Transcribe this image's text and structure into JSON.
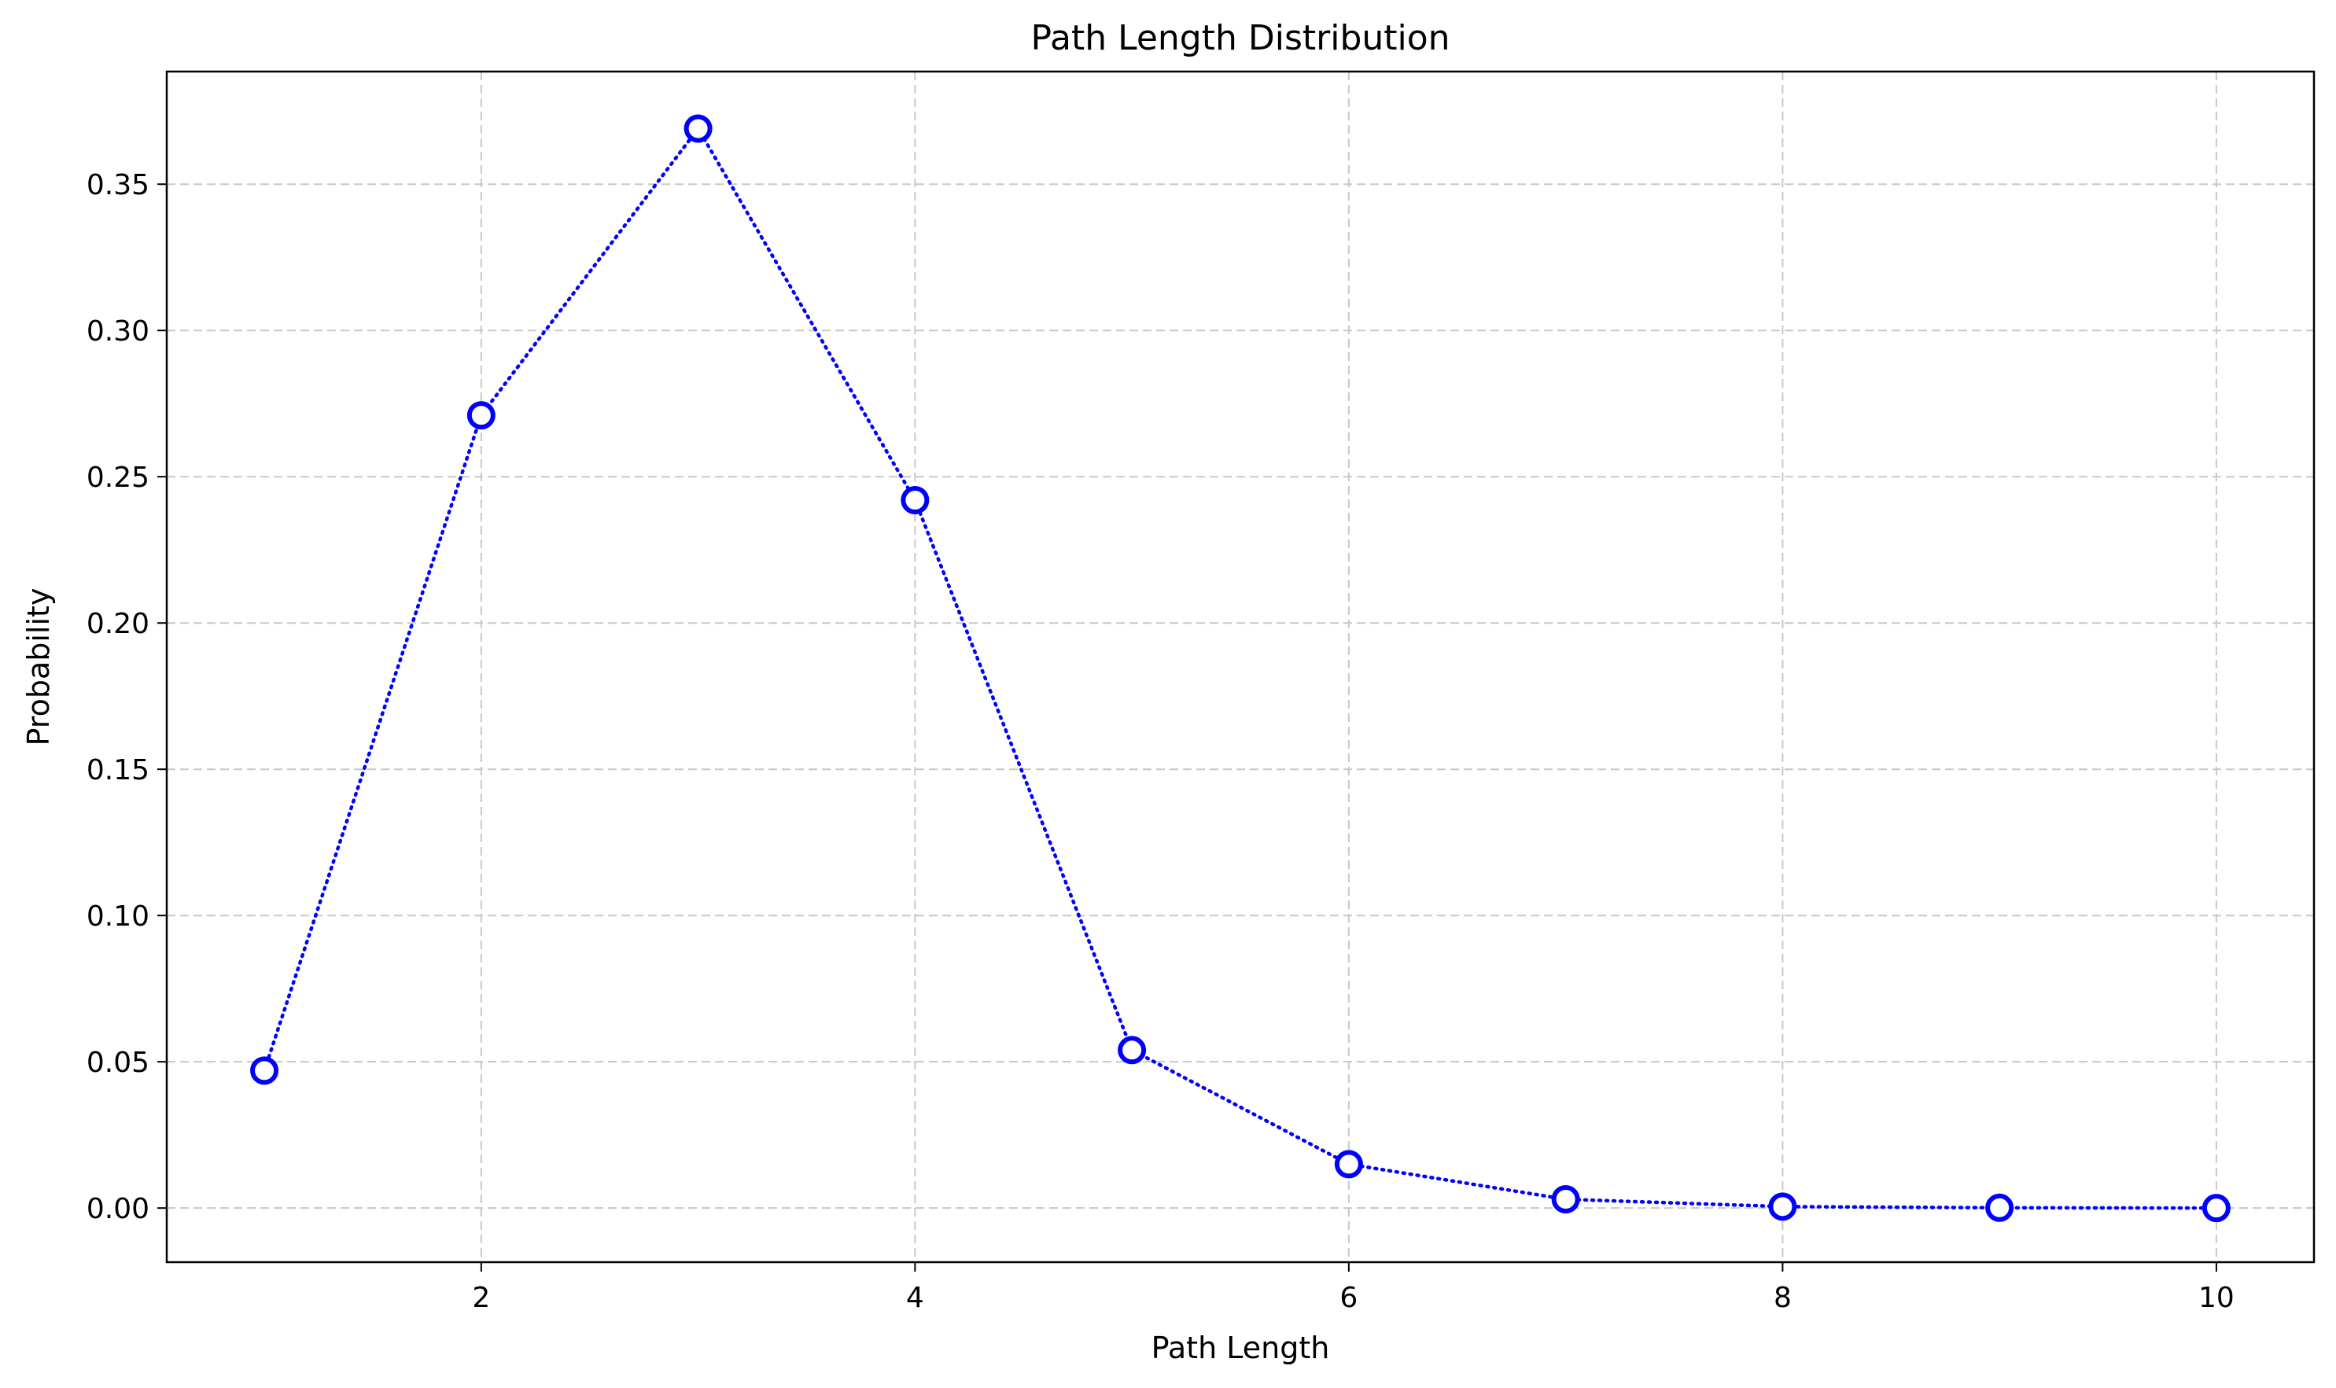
{
  "chart_data": {
    "type": "line",
    "title": "Path Length Distribution",
    "xlabel": "Path Length",
    "ylabel": "Probability",
    "xlim": [
      0.55,
      10.45
    ],
    "ylim": [
      -0.0185,
      0.3885
    ],
    "xticks": [
      2,
      4,
      6,
      8,
      10
    ],
    "xtick_labels": [
      "2",
      "4",
      "6",
      "8",
      "10"
    ],
    "yticks": [
      0.0,
      0.05,
      0.1,
      0.15,
      0.2,
      0.25,
      0.3,
      0.35
    ],
    "ytick_labels": [
      "0.00",
      "0.05",
      "0.10",
      "0.15",
      "0.20",
      "0.25",
      "0.30",
      "0.35"
    ],
    "grid": true,
    "line_style": "dotted",
    "marker": "hollow-circle",
    "color": "#0000ff",
    "x": [
      1,
      2,
      3,
      4,
      5,
      6,
      7,
      8,
      9,
      10
    ],
    "y": [
      0.047,
      0.271,
      0.369,
      0.242,
      0.054,
      0.015,
      0.003,
      0.0005,
      0.0001,
      0.0
    ]
  }
}
